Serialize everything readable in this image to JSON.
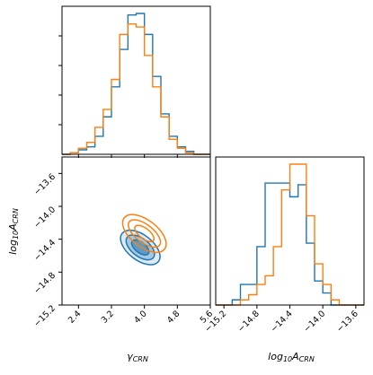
{
  "colors": {
    "series_a": "#1f77b4",
    "series_b": "#ff7f0e",
    "axis": "#000000"
  },
  "chart_data": [
    {
      "type": "histogram",
      "panel": "top-left",
      "parameter": "gamma_CRN",
      "xlim": [
        2.0,
        5.6
      ],
      "bin_edges": [
        2.0,
        2.2,
        2.4,
        2.6,
        2.8,
        3.0,
        3.2,
        3.4,
        3.6,
        3.8,
        4.0,
        4.2,
        4.4,
        4.6,
        4.8,
        5.0,
        5.2,
        5.4,
        5.6
      ],
      "series": [
        {
          "color": "#1f77b4",
          "values": [
            0,
            1,
            3,
            5,
            12,
            25,
            45,
            70,
            93,
            94,
            80,
            52,
            27,
            12,
            5,
            2,
            0,
            0
          ]
        },
        {
          "color": "#ff7f0e",
          "values": [
            0,
            1,
            4,
            8,
            18,
            30,
            50,
            80,
            87,
            85,
            66,
            45,
            25,
            10,
            4,
            1,
            0,
            0
          ]
        }
      ]
    },
    {
      "type": "contour",
      "panel": "bottom-left",
      "xlabel_main": "γ",
      "xlabel_sub": "CRN",
      "ylabel_main": "log",
      "ylabel_base": "10",
      "ylabel_var": "A",
      "ylabel_sub": "CRN",
      "xlim": [
        2.0,
        5.6
      ],
      "ylim": [
        -15.2,
        -13.4
      ],
      "x_ticks": [
        "2.4",
        "3.2",
        "4.0",
        "4.8",
        "5.6"
      ],
      "y_ticks": [
        "−13.6",
        "−14.0",
        "−14.4",
        "−14.8",
        "−15.2"
      ],
      "series": [
        {
          "color": "#1f77b4",
          "center": [
            3.9,
            -14.5
          ],
          "widths": [
            0.9,
            0.65,
            0.4
          ],
          "heights": [
            0.17,
            0.12,
            0.07
          ],
          "angle_deg": 38
        },
        {
          "color": "#ff7f0e",
          "center": [
            4.0,
            -14.33
          ],
          "widths": [
            1.0,
            0.75,
            0.45
          ],
          "heights": [
            0.18,
            0.12,
            0.07
          ],
          "angle_deg": 38
        }
      ]
    },
    {
      "type": "histogram",
      "panel": "bottom-right",
      "xlabel_main": "log",
      "xlabel_base": "10",
      "xlabel_var": "A",
      "xlabel_sub": "CRN",
      "xlim": [
        -15.3,
        -13.5
      ],
      "x_ticks": [
        "−15.2",
        "−14.8",
        "−14.4",
        "−14.0",
        "−13.6"
      ],
      "bin_edges": [
        -15.3,
        -15.2,
        -15.1,
        -15.0,
        -14.9,
        -14.8,
        -14.7,
        -14.6,
        -14.5,
        -14.4,
        -14.3,
        -14.2,
        -14.1,
        -14.0,
        -13.9,
        -13.8,
        -13.7,
        -13.6,
        -13.5
      ],
      "series": [
        {
          "color": "#1f77b4",
          "values": [
            0,
            0,
            3,
            12,
            12,
            34,
            71,
            71,
            71,
            63,
            70,
            36,
            14,
            7,
            0,
            0,
            0,
            0
          ]
        },
        {
          "color": "#ff7f0e",
          "values": [
            0,
            0,
            0,
            3,
            6,
            12,
            17,
            34,
            67,
            82,
            82,
            52,
            24,
            12,
            3,
            0,
            0,
            0
          ]
        }
      ]
    }
  ]
}
